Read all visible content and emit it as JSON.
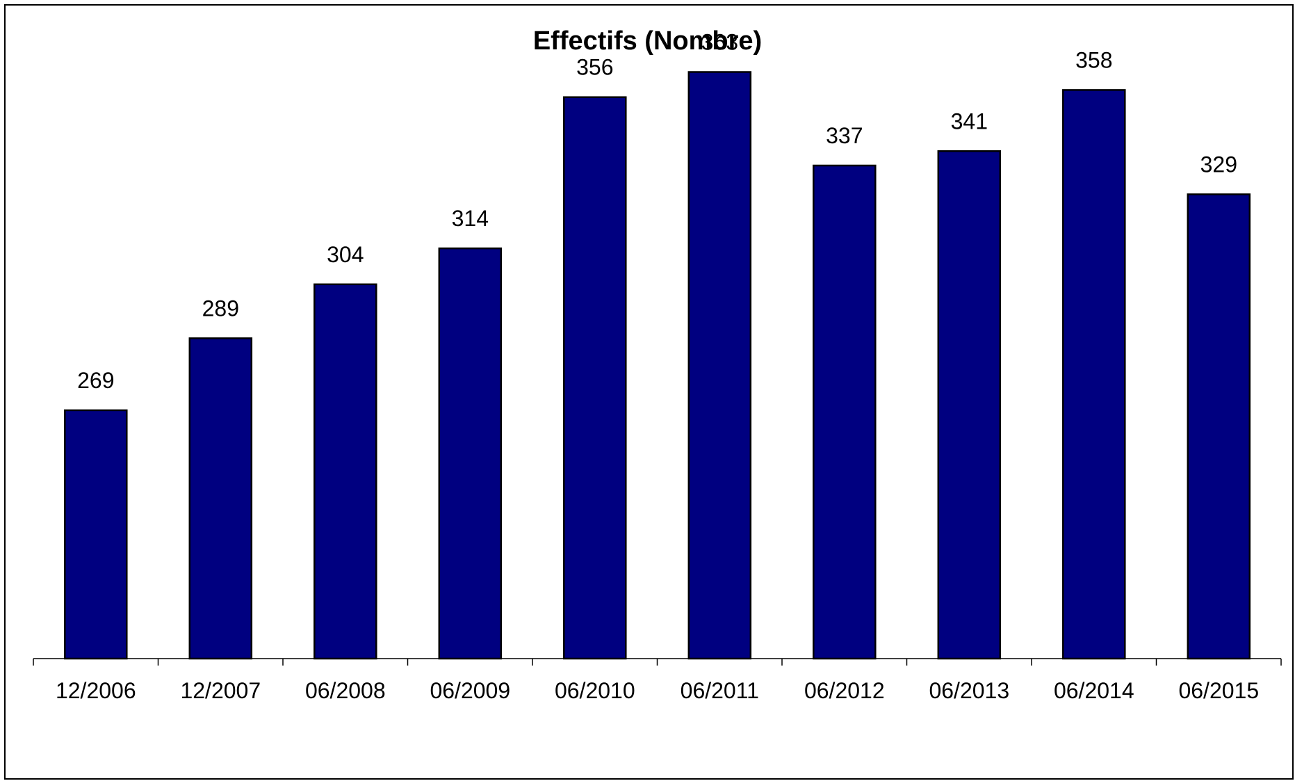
{
  "chart_data": {
    "type": "bar",
    "title": "Effectifs (Nombre)",
    "xlabel": "",
    "ylabel": "",
    "categories": [
      "12/2006",
      "12/2007",
      "06/2008",
      "06/2009",
      "06/2010",
      "06/2011",
      "06/2012",
      "06/2013",
      "06/2014",
      "06/2015"
    ],
    "values": [
      269,
      289,
      304,
      314,
      356,
      363,
      337,
      341,
      358,
      329
    ],
    "data_labels": [
      "269",
      "289",
      "304",
      "314",
      "356",
      "363",
      "337",
      "341",
      "358",
      "329"
    ],
    "ylim": [
      200,
      400
    ],
    "y_axis_visible": false,
    "grid": false,
    "legend": "none",
    "bar_color": "#000080",
    "bar_outline_color": "#000000"
  }
}
